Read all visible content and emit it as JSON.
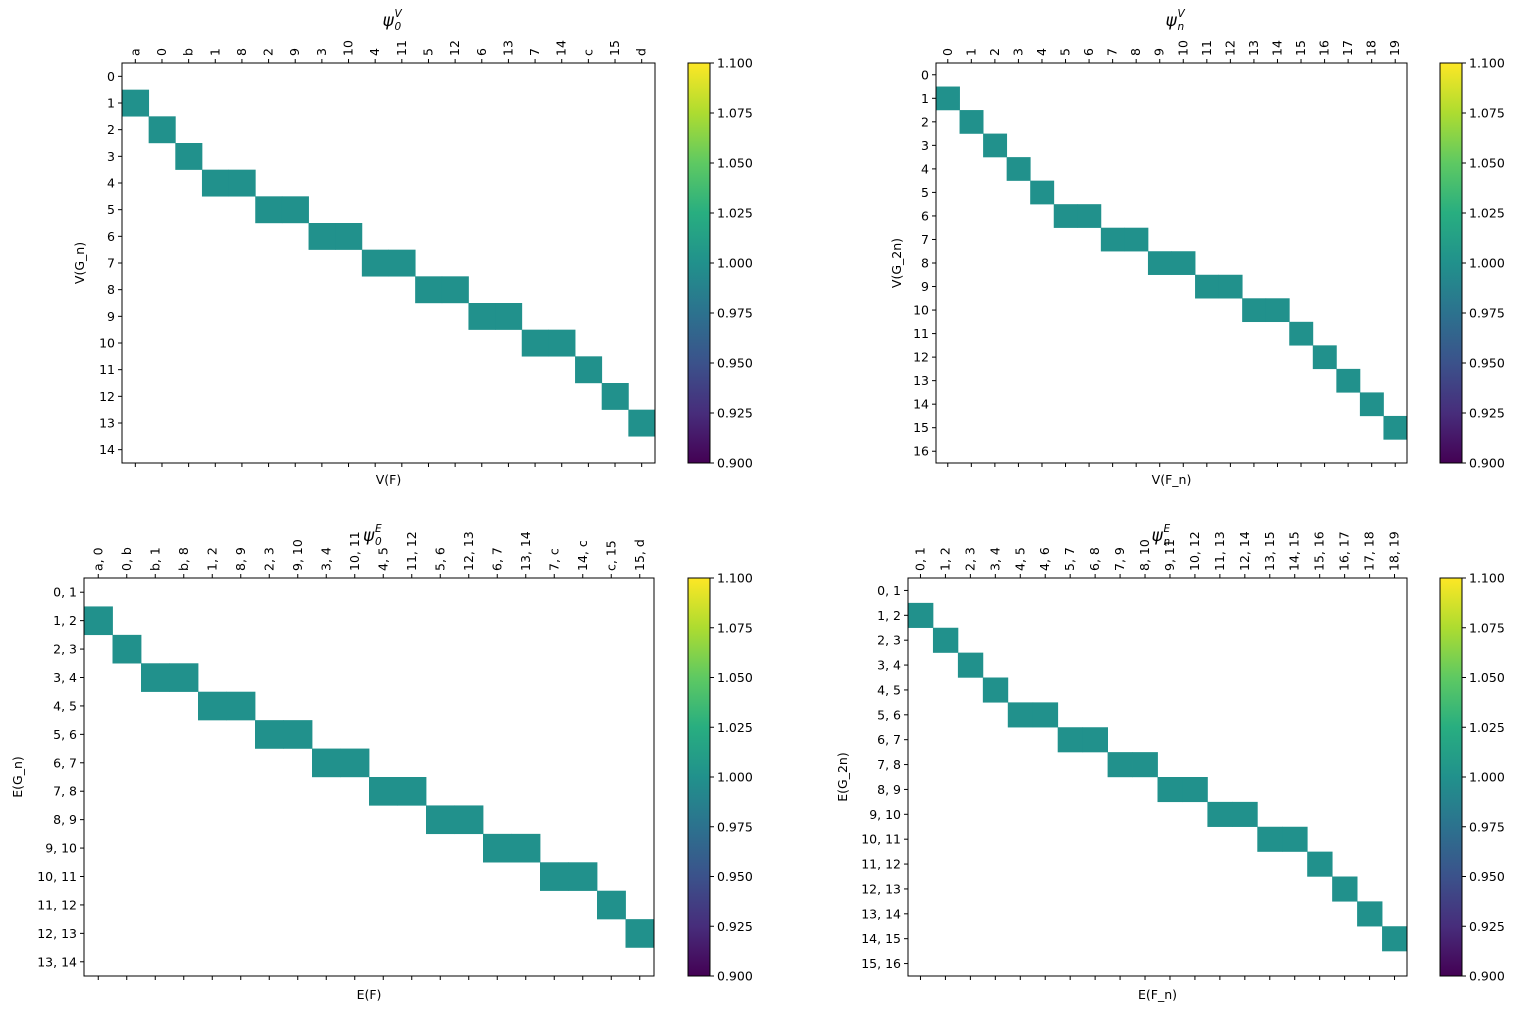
{
  "colorbar": {
    "ticks": [
      "0.900",
      "0.925",
      "0.950",
      "0.975",
      "1.000",
      "1.025",
      "1.050",
      "1.075",
      "1.100"
    ],
    "vmin": 0.9,
    "vmax": 1.1,
    "colormap": "viridis",
    "cell_color": "#21918c"
  },
  "chart_data": [
    {
      "type": "heatmap",
      "title_main": "ψ",
      "title_sub": "0",
      "title_sup": "V",
      "xlabel": "V(F)",
      "ylabel": "V(G_n)",
      "x_categories": [
        "a",
        "0",
        "b",
        "1",
        "8",
        "2",
        "9",
        "3",
        "10",
        "4",
        "11",
        "5",
        "12",
        "6",
        "13",
        "7",
        "14",
        "c",
        "15",
        "d"
      ],
      "y_categories": [
        "0",
        "1",
        "2",
        "3",
        "4",
        "5",
        "6",
        "7",
        "8",
        "9",
        "10",
        "11",
        "12",
        "13",
        "14"
      ],
      "value": 1.0,
      "cells": [
        {
          "row": "1",
          "cols": [
            "a"
          ]
        },
        {
          "row": "2",
          "cols": [
            "0"
          ]
        },
        {
          "row": "3",
          "cols": [
            "b"
          ]
        },
        {
          "row": "4",
          "cols": [
            "1",
            "8"
          ]
        },
        {
          "row": "5",
          "cols": [
            "2",
            "9"
          ]
        },
        {
          "row": "6",
          "cols": [
            "3",
            "10"
          ]
        },
        {
          "row": "7",
          "cols": [
            "4",
            "11"
          ]
        },
        {
          "row": "8",
          "cols": [
            "5",
            "12"
          ]
        },
        {
          "row": "9",
          "cols": [
            "6",
            "13"
          ]
        },
        {
          "row": "10",
          "cols": [
            "7",
            "14"
          ]
        },
        {
          "row": "11",
          "cols": [
            "c"
          ]
        },
        {
          "row": "12",
          "cols": [
            "15"
          ]
        },
        {
          "row": "13",
          "cols": [
            "d"
          ]
        }
      ]
    },
    {
      "type": "heatmap",
      "title_main": "ψ",
      "title_sub": "n",
      "title_sup": "V",
      "xlabel": "V(F_n)",
      "ylabel": "V(G_2n)",
      "x_categories": [
        "0",
        "1",
        "2",
        "3",
        "4",
        "5",
        "6",
        "7",
        "8",
        "9",
        "10",
        "11",
        "12",
        "13",
        "14",
        "15",
        "16",
        "17",
        "18",
        "19"
      ],
      "y_categories": [
        "0",
        "1",
        "2",
        "3",
        "4",
        "5",
        "6",
        "7",
        "8",
        "9",
        "10",
        "11",
        "12",
        "13",
        "14",
        "15",
        "16"
      ],
      "value": 1.0,
      "cells": [
        {
          "row": "1",
          "cols": [
            "0"
          ]
        },
        {
          "row": "2",
          "cols": [
            "1"
          ]
        },
        {
          "row": "3",
          "cols": [
            "2"
          ]
        },
        {
          "row": "4",
          "cols": [
            "3"
          ]
        },
        {
          "row": "5",
          "cols": [
            "4"
          ]
        },
        {
          "row": "6",
          "cols": [
            "5",
            "6"
          ]
        },
        {
          "row": "7",
          "cols": [
            "7",
            "8"
          ]
        },
        {
          "row": "8",
          "cols": [
            "9",
            "10"
          ]
        },
        {
          "row": "9",
          "cols": [
            "11",
            "12"
          ]
        },
        {
          "row": "10",
          "cols": [
            "13",
            "14"
          ]
        },
        {
          "row": "11",
          "cols": [
            "15"
          ]
        },
        {
          "row": "12",
          "cols": [
            "16"
          ]
        },
        {
          "row": "13",
          "cols": [
            "17"
          ]
        },
        {
          "row": "14",
          "cols": [
            "18"
          ]
        },
        {
          "row": "15",
          "cols": [
            "19"
          ]
        }
      ]
    },
    {
      "type": "heatmap",
      "title_main": "ψ",
      "title_sub": "0",
      "title_sup": "E",
      "xlabel": "E(F)",
      "ylabel": "E(G_n)",
      "x_categories": [
        "a, 0",
        "0, b",
        "b, 1",
        "b, 8",
        "1, 2",
        "8, 9",
        "2, 3",
        "9, 10",
        "3, 4",
        "10, 11",
        "4, 5",
        "11, 12",
        "5, 6",
        "12, 13",
        "6, 7",
        "13, 14",
        "7, c",
        "14, c",
        "c, 15",
        "15, d"
      ],
      "y_categories": [
        "0, 1",
        "1, 2",
        "2, 3",
        "3, 4",
        "4, 5",
        "5, 6",
        "6, 7",
        "7, 8",
        "8, 9",
        "9, 10",
        "10, 11",
        "11, 12",
        "12, 13",
        "13, 14"
      ],
      "value": 1.0,
      "cells": [
        {
          "row": "1, 2",
          "cols": [
            "a, 0"
          ]
        },
        {
          "row": "2, 3",
          "cols": [
            "0, b"
          ]
        },
        {
          "row": "3, 4",
          "cols": [
            "b, 1",
            "b, 8"
          ]
        },
        {
          "row": "4, 5",
          "cols": [
            "1, 2",
            "8, 9"
          ]
        },
        {
          "row": "5, 6",
          "cols": [
            "2, 3",
            "9, 10"
          ]
        },
        {
          "row": "6, 7",
          "cols": [
            "3, 4",
            "10, 11"
          ]
        },
        {
          "row": "7, 8",
          "cols": [
            "4, 5",
            "11, 12"
          ]
        },
        {
          "row": "8, 9",
          "cols": [
            "5, 6",
            "12, 13"
          ]
        },
        {
          "row": "9, 10",
          "cols": [
            "6, 7",
            "13, 14"
          ]
        },
        {
          "row": "10, 11",
          "cols": [
            "7, c",
            "14, c"
          ]
        },
        {
          "row": "11, 12",
          "cols": [
            "c, 15"
          ]
        },
        {
          "row": "12, 13",
          "cols": [
            "15, d"
          ]
        }
      ]
    },
    {
      "type": "heatmap",
      "title_main": "ψ",
      "title_sub": "n",
      "title_sup": "E",
      "xlabel": "E(F_n)",
      "ylabel": "E(G_2n)",
      "x_categories": [
        "0, 1",
        "1, 2",
        "2, 3",
        "3, 4",
        "4, 5",
        "4, 6",
        "5, 7",
        "6, 8",
        "7, 9",
        "8, 10",
        "9, 11",
        "10, 12",
        "11, 13",
        "12, 14",
        "13, 15",
        "14, 15",
        "15, 16",
        "16, 17",
        "17, 18",
        "18, 19"
      ],
      "y_categories": [
        "0, 1",
        "1, 2",
        "2, 3",
        "3, 4",
        "4, 5",
        "5, 6",
        "6, 7",
        "7, 8",
        "8, 9",
        "9, 10",
        "10, 11",
        "11, 12",
        "12, 13",
        "13, 14",
        "14, 15",
        "15, 16"
      ],
      "value": 1.0,
      "cells": [
        {
          "row": "1, 2",
          "cols": [
            "0, 1"
          ]
        },
        {
          "row": "2, 3",
          "cols": [
            "1, 2"
          ]
        },
        {
          "row": "3, 4",
          "cols": [
            "2, 3"
          ]
        },
        {
          "row": "4, 5",
          "cols": [
            "3, 4"
          ]
        },
        {
          "row": "5, 6",
          "cols": [
            "4, 5",
            "4, 6"
          ]
        },
        {
          "row": "6, 7",
          "cols": [
            "5, 7",
            "6, 8"
          ]
        },
        {
          "row": "7, 8",
          "cols": [
            "7, 9",
            "8, 10"
          ]
        },
        {
          "row": "8, 9",
          "cols": [
            "9, 11",
            "10, 12"
          ]
        },
        {
          "row": "9, 10",
          "cols": [
            "11, 13",
            "12, 14"
          ]
        },
        {
          "row": "10, 11",
          "cols": [
            "13, 15",
            "14, 15"
          ]
        },
        {
          "row": "11, 12",
          "cols": [
            "15, 16"
          ]
        },
        {
          "row": "12, 13",
          "cols": [
            "16, 17"
          ]
        },
        {
          "row": "13, 14",
          "cols": [
            "17, 18"
          ]
        },
        {
          "row": "14, 15",
          "cols": [
            "18, 19"
          ]
        }
      ]
    }
  ]
}
